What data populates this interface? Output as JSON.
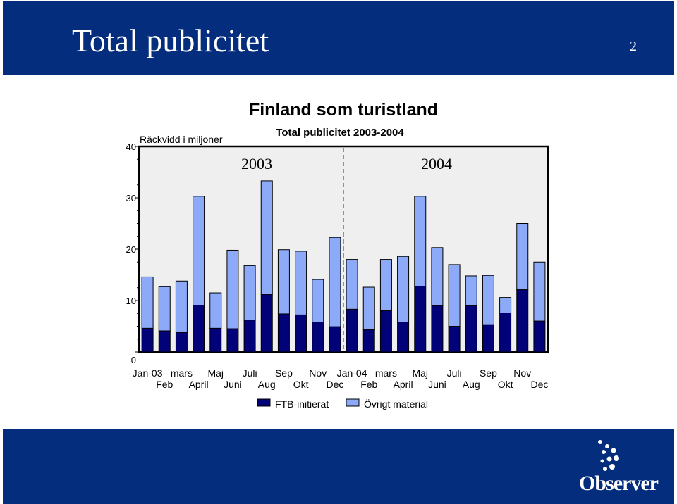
{
  "slide": {
    "title": "Total publicitet",
    "page_number": "2",
    "logo_text": "Observer"
  },
  "colors": {
    "header_bg": "#042d7d",
    "ftb": "#010178",
    "ovrigt": "#8caaf8",
    "plot_bg": "#efefef"
  },
  "chart_data": {
    "type": "bar",
    "stacked": true,
    "title": "Finland som turistland",
    "subtitle": "Total publicitet 2003-2004",
    "ylabel": "Räckvidd i miljoner",
    "ylim": [
      0,
      40
    ],
    "yticks": [
      0,
      10,
      20,
      30,
      40
    ],
    "year_labels": [
      "2003",
      "2004"
    ],
    "categories": [
      "Jan-03",
      "Feb",
      "mars",
      "April",
      "Maj",
      "Juni",
      "Juli",
      "Aug",
      "Sep",
      "Okt",
      "Nov",
      "Dec",
      "Jan-04",
      "Feb",
      "mars",
      "April",
      "Maj",
      "Juni",
      "Juli",
      "Aug",
      "Sep",
      "Okt",
      "Nov",
      "Dec"
    ],
    "series": [
      {
        "name": "FTB-initierat",
        "values": [
          4.6,
          4.1,
          3.8,
          9.1,
          4.6,
          4.5,
          6.2,
          11.2,
          7.4,
          7.2,
          5.8,
          4.9,
          8.3,
          4.3,
          8.0,
          5.8,
          12.8,
          9.0,
          5.0,
          9.0,
          5.3,
          7.6,
          12.1,
          6.0
        ]
      },
      {
        "name": "Övrigt material",
        "values": [
          10.0,
          8.6,
          10.0,
          21.2,
          6.9,
          15.3,
          10.6,
          22.1,
          12.5,
          12.4,
          8.3,
          17.4,
          9.7,
          8.3,
          10.0,
          12.8,
          17.5,
          11.3,
          12.0,
          5.8,
          9.6,
          3.0,
          12.9,
          11.5
        ]
      }
    ],
    "legend_position": "bottom",
    "grid": false
  }
}
